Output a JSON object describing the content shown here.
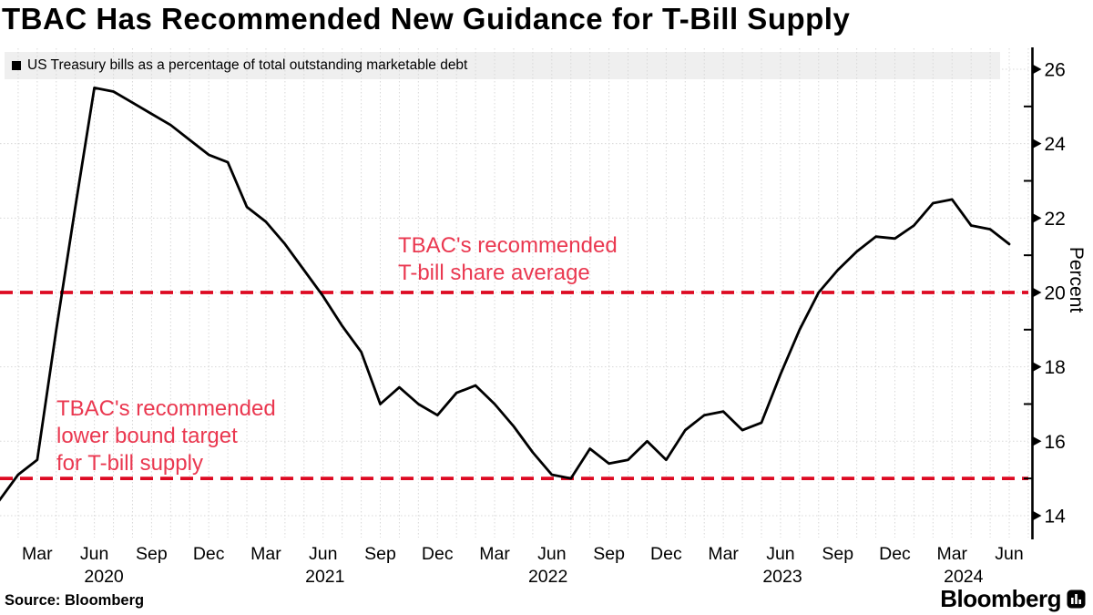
{
  "title": "TBAC Has Recommended New Guidance for T-Bill Supply",
  "legend": {
    "label": "US Treasury bills as a percentage of total outstanding marketable debt"
  },
  "annotations": {
    "upper": "TBAC's recommended\nT-bill share average",
    "lower": "TBAC's recommended\nlower bound target\nfor T-bill supply"
  },
  "source_label": "Source: Bloomberg",
  "branding": {
    "wordmark": "Bloomberg"
  },
  "colors": {
    "line": "#000000",
    "reference_line": "#dd0a22",
    "annotation_text": "#ea3850",
    "grid": "#d8d8d8",
    "legend_bg": "#efefef",
    "axis": "#000000"
  },
  "chart_data": {
    "type": "line",
    "title": "TBAC Has Recommended New Guidance for T-Bill Supply",
    "xlabel": "",
    "ylabel": "Percent",
    "ylim": [
      13.4,
      26.6
    ],
    "grid": "dotted; vertical lines monthly, horizontal lines every 2 units",
    "legend_position": "top-left",
    "y_ticks": [
      26,
      24,
      22,
      20,
      18,
      16,
      14
    ],
    "y_minor_ticks": [
      25,
      23,
      21,
      19,
      17,
      15
    ],
    "x": [
      "2020-01",
      "2020-02",
      "2020-03",
      "2020-04",
      "2020-05",
      "2020-06",
      "2020-07",
      "2020-08",
      "2020-09",
      "2020-10",
      "2020-11",
      "2020-12",
      "2021-01",
      "2021-02",
      "2021-03",
      "2021-04",
      "2021-05",
      "2021-06",
      "2021-07",
      "2021-08",
      "2021-09",
      "2021-10",
      "2021-11",
      "2021-12",
      "2022-01",
      "2022-02",
      "2022-03",
      "2022-04",
      "2022-05",
      "2022-06",
      "2022-07",
      "2022-08",
      "2022-09",
      "2022-10",
      "2022-11",
      "2022-12",
      "2023-01",
      "2023-02",
      "2023-03",
      "2023-04",
      "2023-05",
      "2023-06",
      "2023-07",
      "2023-08",
      "2023-09",
      "2023-10",
      "2023-11",
      "2023-12",
      "2024-01",
      "2024-02",
      "2024-03",
      "2024-04",
      "2024-05",
      "2024-06"
    ],
    "series": [
      {
        "name": "US Treasury bills as a percentage of total outstanding marketable debt",
        "color": "#000000",
        "values": [
          14.4,
          15.1,
          15.5,
          19.0,
          22.3,
          25.5,
          25.4,
          25.1,
          24.8,
          24.5,
          24.1,
          23.7,
          23.5,
          22.3,
          21.9,
          21.3,
          20.6,
          19.9,
          19.1,
          18.4,
          17.0,
          17.45,
          17.0,
          16.7,
          17.3,
          17.5,
          17.0,
          16.4,
          15.7,
          15.1,
          15.0,
          15.8,
          15.4,
          15.5,
          16.0,
          15.5,
          16.3,
          16.7,
          16.8,
          16.3,
          16.5,
          17.8,
          19.0,
          20.0,
          20.6,
          21.1,
          21.5,
          21.45,
          21.8,
          22.4,
          22.5,
          21.8,
          21.7,
          21.3
        ]
      }
    ],
    "reference_lines": [
      {
        "value": 20,
        "style": "dashed",
        "label": "TBAC's recommended T-bill share average"
      },
      {
        "value": 15,
        "style": "dashed",
        "label": "TBAC's recommended lower bound target for T-bill supply"
      }
    ],
    "x_tick_labels": [
      {
        "i": 2,
        "label": "Mar"
      },
      {
        "i": 5,
        "label": "Jun"
      },
      {
        "i": 8,
        "label": "Sep"
      },
      {
        "i": 11,
        "label": "Dec"
      },
      {
        "i": 14,
        "label": "Mar"
      },
      {
        "i": 17,
        "label": "Jun"
      },
      {
        "i": 20,
        "label": "Sep"
      },
      {
        "i": 23,
        "label": "Dec"
      },
      {
        "i": 26,
        "label": "Mar"
      },
      {
        "i": 29,
        "label": "Jun"
      },
      {
        "i": 32,
        "label": "Sep"
      },
      {
        "i": 35,
        "label": "Dec"
      },
      {
        "i": 38,
        "label": "Mar"
      },
      {
        "i": 41,
        "label": "Jun"
      },
      {
        "i": 44,
        "label": "Sep"
      },
      {
        "i": 47,
        "label": "Dec"
      },
      {
        "i": 50,
        "label": "Mar"
      },
      {
        "i": 53,
        "label": "Jun"
      }
    ],
    "year_labels": [
      {
        "i": 5.5,
        "label": "2020"
      },
      {
        "i": 17.1,
        "label": "2021"
      },
      {
        "i": 28.8,
        "label": "2022"
      },
      {
        "i": 41.1,
        "label": "2023"
      },
      {
        "i": 50.6,
        "label": "2024"
      }
    ]
  }
}
